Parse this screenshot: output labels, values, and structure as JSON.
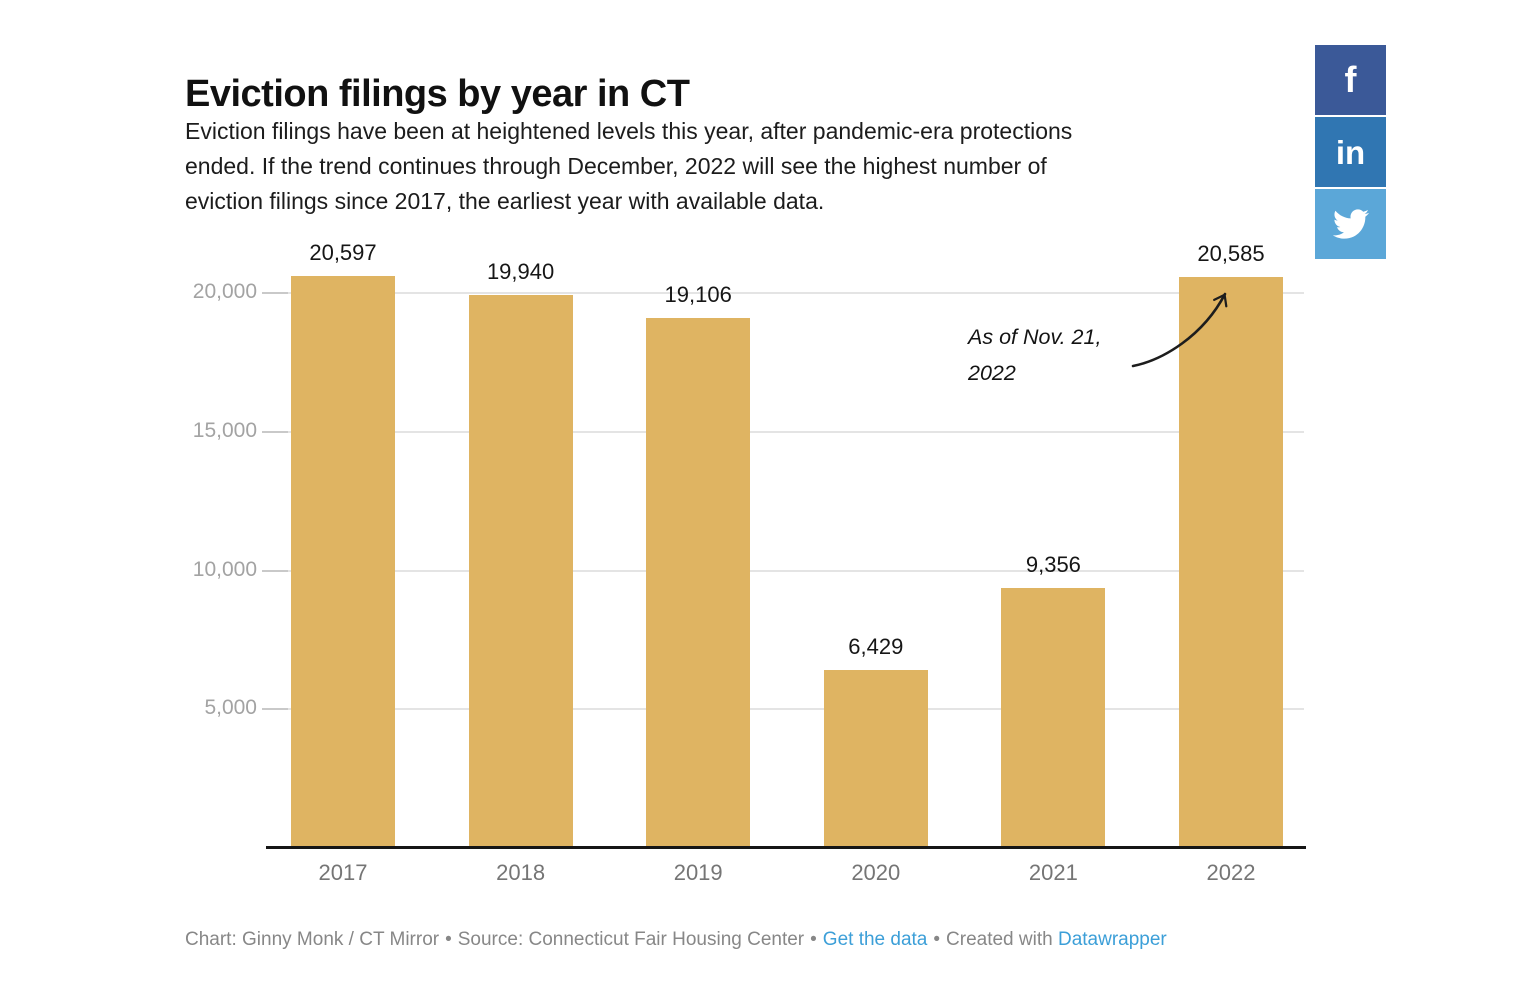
{
  "header": {
    "title": "Eviction filings by year in CT",
    "description": "Eviction filings have been at heightened levels this year, after pandemic-era protections\nended. If the trend continues through December, 2022 will see the highest number of\neviction filings since 2017, the earliest year with available data."
  },
  "share": {
    "facebook_label": "f",
    "linkedin_label": "in",
    "facebook_color": "#3b5998",
    "linkedin_color": "#3076b2",
    "twitter_color": "#5ba7d8"
  },
  "chart_data": {
    "type": "bar",
    "title": "Eviction filings by year in CT",
    "categories": [
      "2017",
      "2018",
      "2019",
      "2020",
      "2021",
      "2022"
    ],
    "values": [
      20597,
      19940,
      19106,
      6429,
      9356,
      20585
    ],
    "value_labels": [
      "20,597",
      "19,940",
      "19,106",
      "6,429",
      "9,356",
      "20,585"
    ],
    "bar_color": "#dfb462",
    "xlabel": "",
    "ylabel": "",
    "ylim": [
      0,
      21000
    ],
    "yticks": [
      5000,
      10000,
      15000,
      20000
    ],
    "ytick_labels": [
      "5,000",
      "10,000",
      "15,000",
      "20,000"
    ],
    "grid": "horizontal",
    "legend": "none",
    "annotation": {
      "text": "As of Nov. 21,\n2022"
    }
  },
  "footer": {
    "credit": "Chart: Ginny Monk / CT Mirror",
    "separator": "•",
    "source": "Source: Connecticut Fair Housing Center",
    "get_data_label": "Get the data",
    "created_with": "Created with",
    "tool_label": "Datawrapper",
    "link_color": "#3c9fd8"
  }
}
